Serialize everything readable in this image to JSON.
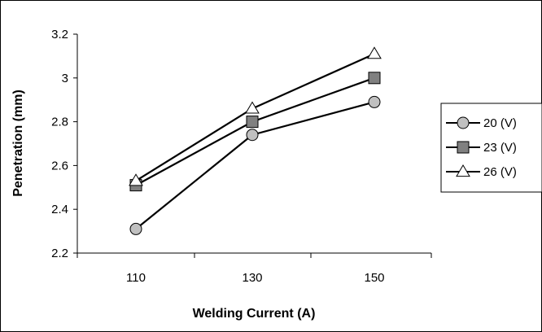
{
  "chart_data": {
    "type": "line",
    "title": "",
    "xlabel": "Welding Current (A)",
    "ylabel": "Penetration (mm)",
    "categories": [
      "110",
      "130",
      "150"
    ],
    "ylim": [
      2.2,
      3.2
    ],
    "yticks": [
      "2.2",
      "2.4",
      "2.6",
      "2.8",
      "3",
      "3.2"
    ],
    "grid": false,
    "legend_position": "right",
    "series": [
      {
        "name": "20 (V)",
        "marker": "circle",
        "values": [
          2.31,
          2.74,
          2.89
        ]
      },
      {
        "name": "23 (V)",
        "marker": "square",
        "values": [
          2.51,
          2.8,
          3.0
        ]
      },
      {
        "name": "26 (V)",
        "marker": "triangle",
        "values": [
          2.53,
          2.86,
          3.11
        ]
      }
    ],
    "colors": {
      "line": "#000000",
      "marker_fill": "#c0c0c0",
      "triangle_fill": "#ffffff",
      "square_fill": "#808080"
    }
  }
}
